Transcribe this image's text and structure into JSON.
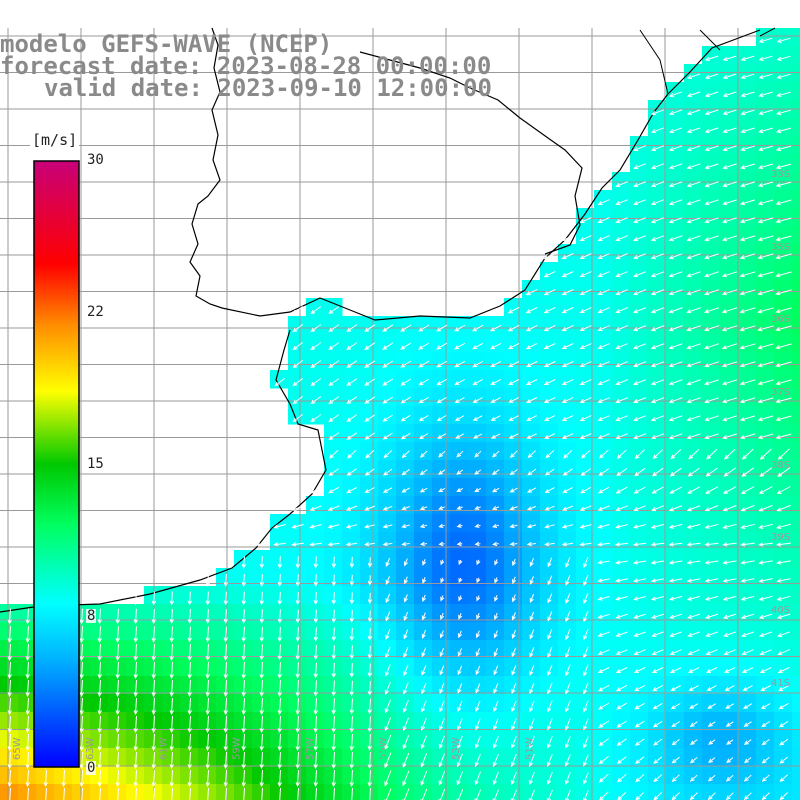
{
  "title": {
    "line1": "modelo GEFS-WAVE (NCEP)",
    "line2": "forecast date: 2023-08-28 00:00:00",
    "line3": "valid date: 2023-09-10 12:00:00"
  },
  "colorbar": {
    "unit": "[m/s]",
    "ticks": [
      "30",
      "22",
      "15",
      "8",
      "0"
    ],
    "range": [
      0,
      30
    ],
    "stops": [
      "#0000ff",
      "#00b4ff",
      "#00ffff",
      "#00ff60",
      "#00c800",
      "#ffff00",
      "#ff8c00",
      "#ff0000",
      "#c80078"
    ]
  },
  "map": {
    "lon_labels": [
      "65W",
      "63W",
      "61W",
      "59W",
      "57W",
      "55W",
      "53W",
      "51W"
    ],
    "lat_labels": [
      "33S",
      "35S",
      "36S",
      "37S",
      "38S",
      "39S",
      "40S",
      "41S"
    ],
    "land_color": "#ffffff",
    "grid_color": "#9a9a9a",
    "arrow_color": "#ffffff"
  }
}
